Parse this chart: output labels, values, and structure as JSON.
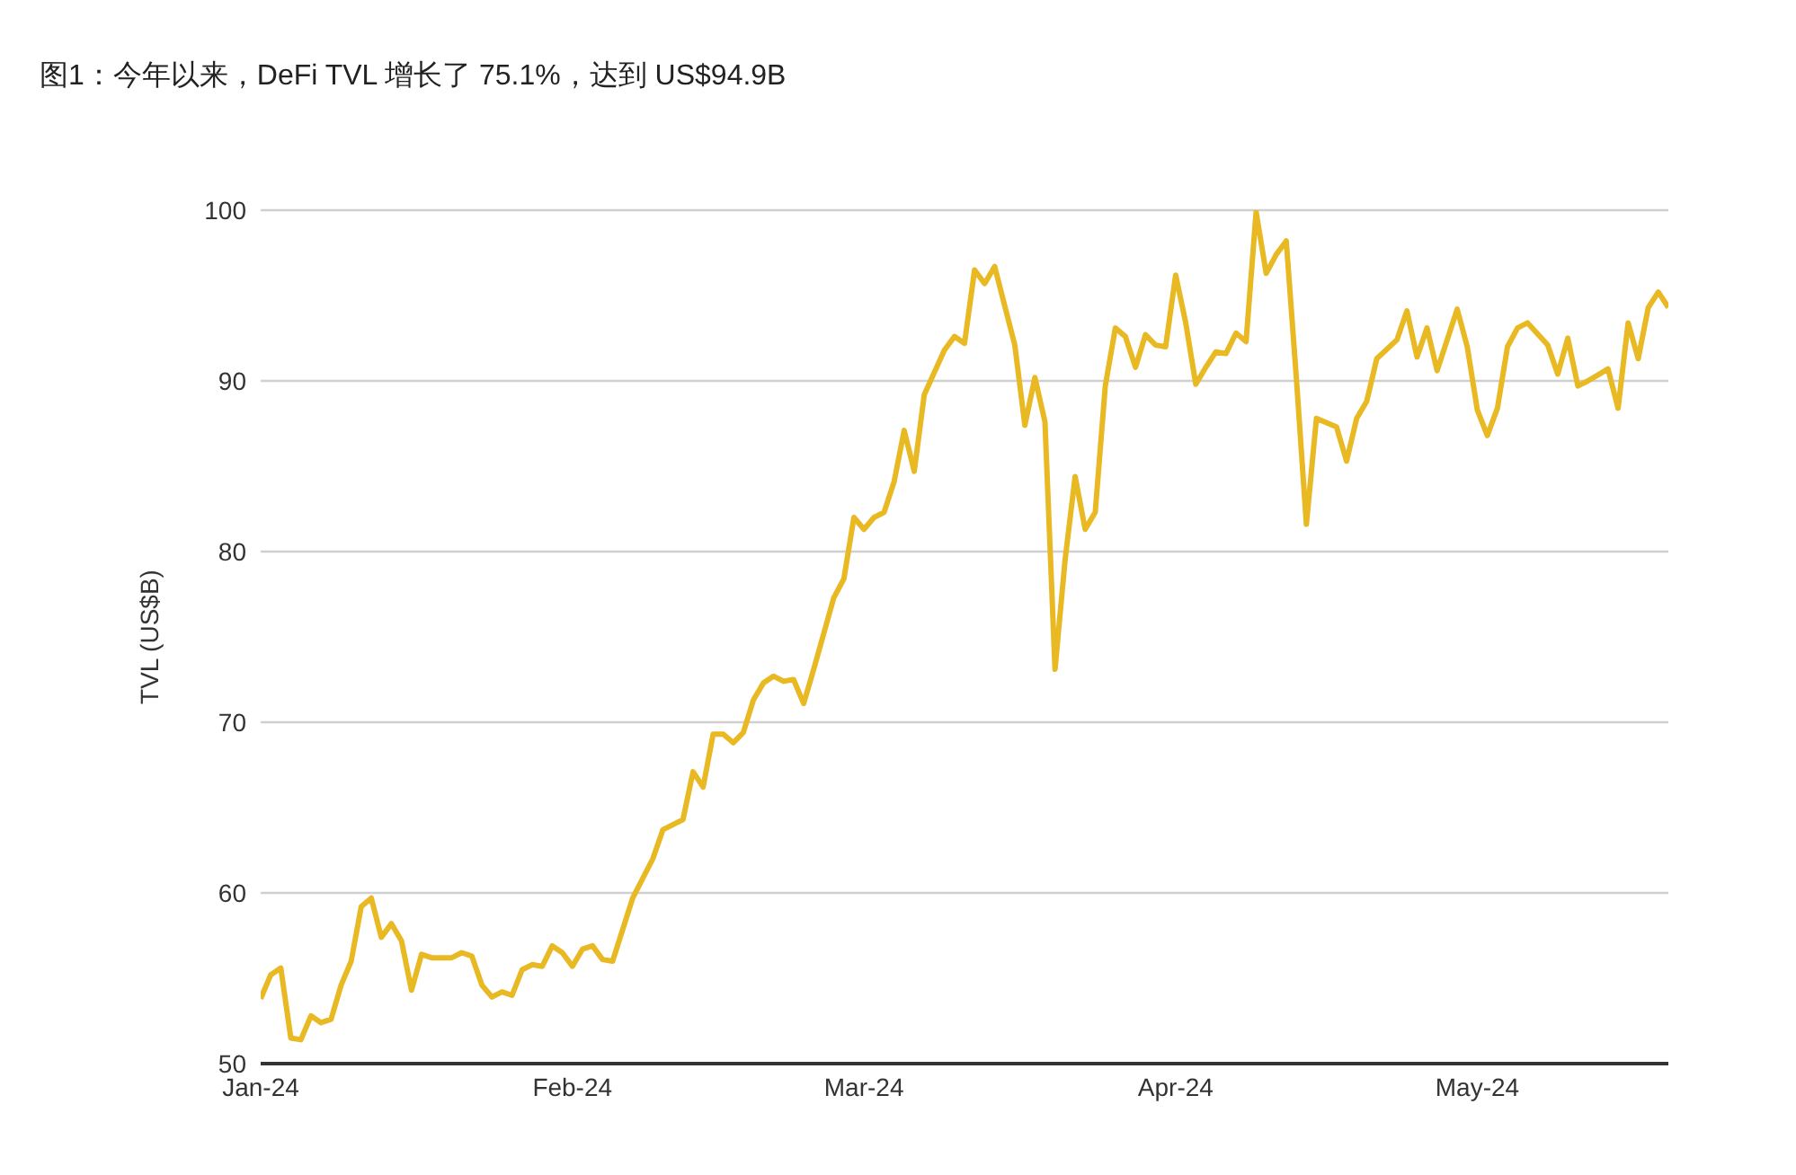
{
  "chart_data": {
    "type": "line",
    "title": "图1：今年以来，DeFi TVL 增长了 75.1%，达到 US$94.9B",
    "ylabel": "TVL (US$B)",
    "x": [
      "2024-01-01",
      "2024-01-02",
      "2024-01-03",
      "2024-01-04",
      "2024-01-05",
      "2024-01-06",
      "2024-01-07",
      "2024-01-08",
      "2024-01-09",
      "2024-01-10",
      "2024-01-11",
      "2024-01-12",
      "2024-01-13",
      "2024-01-14",
      "2024-01-15",
      "2024-01-16",
      "2024-01-17",
      "2024-01-18",
      "2024-01-20",
      "2024-01-21",
      "2024-01-22",
      "2024-01-23",
      "2024-01-24",
      "2024-01-25",
      "2024-01-26",
      "2024-01-27",
      "2024-01-28",
      "2024-01-29",
      "2024-01-30",
      "2024-01-31",
      "2024-02-01",
      "2024-02-02",
      "2024-02-03",
      "2024-02-04",
      "2024-02-05",
      "2024-02-07",
      "2024-02-09",
      "2024-02-10",
      "2024-02-12",
      "2024-02-13",
      "2024-02-14",
      "2024-02-15",
      "2024-02-16",
      "2024-02-17",
      "2024-02-18",
      "2024-02-19",
      "2024-02-20",
      "2024-02-21",
      "2024-02-22",
      "2024-02-23",
      "2024-02-24",
      "2024-02-25",
      "2024-02-26",
      "2024-02-27",
      "2024-02-28",
      "2024-02-29",
      "2024-03-01",
      "2024-03-02",
      "2024-03-03",
      "2024-03-04",
      "2024-03-05",
      "2024-03-06",
      "2024-03-07",
      "2024-03-08",
      "2024-03-09",
      "2024-03-10",
      "2024-03-11",
      "2024-03-12",
      "2024-03-13",
      "2024-03-14",
      "2024-03-15",
      "2024-03-16",
      "2024-03-17",
      "2024-03-18",
      "2024-03-19",
      "2024-03-20",
      "2024-03-21",
      "2024-03-22",
      "2024-03-23",
      "2024-03-24",
      "2024-03-25",
      "2024-03-26",
      "2024-03-27",
      "2024-03-28",
      "2024-03-29",
      "2024-03-30",
      "2024-03-31",
      "2024-04-01",
      "2024-04-02",
      "2024-04-03",
      "2024-04-04",
      "2024-04-05",
      "2024-04-06",
      "2024-04-07",
      "2024-04-08",
      "2024-04-09",
      "2024-04-10",
      "2024-04-11",
      "2024-04-12",
      "2024-04-13",
      "2024-04-14",
      "2024-04-15",
      "2024-04-17",
      "2024-04-18",
      "2024-04-19",
      "2024-04-20",
      "2024-04-21",
      "2024-04-23",
      "2024-04-24",
      "2024-04-25",
      "2024-04-26",
      "2024-04-27",
      "2024-04-29",
      "2024-04-30",
      "2024-05-01",
      "2024-05-02",
      "2024-05-03",
      "2024-05-04",
      "2024-05-05",
      "2024-05-06",
      "2024-05-08",
      "2024-05-09",
      "2024-05-10",
      "2024-05-11",
      "2024-05-12",
      "2024-05-14",
      "2024-05-15",
      "2024-05-16",
      "2024-05-17",
      "2024-05-18",
      "2024-05-19",
      "2024-05-20"
    ],
    "values": [
      53.8,
      55.2,
      55.6,
      51.5,
      51.4,
      52.8,
      52.4,
      52.6,
      54.6,
      56.0,
      59.2,
      59.7,
      57.4,
      58.2,
      57.2,
      54.3,
      56.4,
      56.2,
      56.2,
      56.5,
      56.3,
      54.6,
      53.9,
      54.2,
      54.0,
      55.5,
      55.8,
      55.7,
      56.9,
      56.5,
      55.7,
      56.7,
      56.9,
      56.1,
      56.0,
      59.7,
      62.0,
      63.7,
      64.3,
      67.1,
      66.2,
      69.3,
      69.3,
      68.8,
      69.4,
      71.3,
      72.3,
      72.7,
      72.4,
      72.5,
      71.1,
      73.1,
      75.2,
      77.3,
      78.4,
      82.0,
      81.3,
      82.0,
      82.3,
      84.1,
      87.1,
      84.7,
      89.2,
      90.5,
      91.8,
      92.6,
      92.2,
      96.5,
      95.7,
      96.7,
      94.4,
      92.1,
      87.4,
      90.2,
      87.6,
      73.1,
      79.5,
      84.4,
      81.3,
      82.3,
      89.7,
      93.1,
      92.6,
      90.8,
      92.7,
      92.1,
      92.0,
      96.2,
      93.4,
      89.8,
      90.8,
      91.7,
      91.6,
      92.8,
      92.3,
      99.9,
      96.3,
      97.4,
      98.2,
      90.2,
      81.6,
      87.8,
      87.3,
      85.3,
      87.8,
      88.8,
      91.3,
      92.4,
      94.1,
      91.4,
      93.1,
      90.6,
      94.2,
      92.0,
      88.3,
      86.8,
      88.4,
      92.0,
      93.1,
      93.4,
      92.1,
      90.4,
      92.5,
      89.7,
      90.0,
      90.7,
      88.4,
      93.4,
      91.3,
      94.3,
      95.2,
      94.3
    ],
    "color": "#e8b923",
    "xlim": [
      "2024-01-01",
      "2024-05-20"
    ],
    "xticks": [
      {
        "value": "2024-01-01",
        "label": "Jan-24"
      },
      {
        "value": "2024-02-01",
        "label": "Feb-24"
      },
      {
        "value": "2024-03-01",
        "label": "Mar-24"
      },
      {
        "value": "2024-04-01",
        "label": "Apr-24"
      },
      {
        "value": "2024-05-01",
        "label": "May-24"
      }
    ],
    "ylim": [
      50,
      100
    ],
    "yticks": [
      50,
      60,
      70,
      80,
      90,
      100
    ],
    "grid": "y"
  }
}
